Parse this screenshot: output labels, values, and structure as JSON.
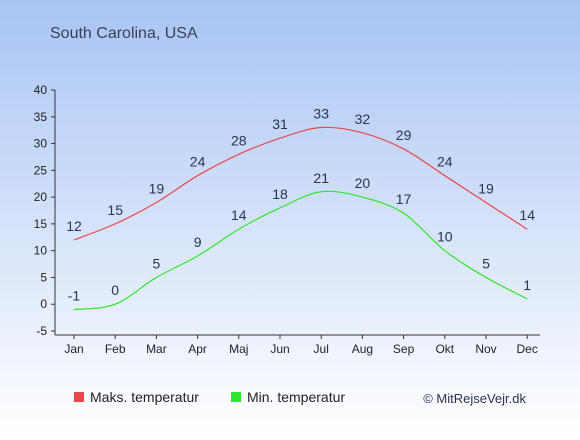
{
  "location": "South Carolina, USA",
  "copyright": "© MitRejseVejr.dk",
  "colors": {
    "max": "#e8474b",
    "min": "#2ee62e",
    "bg_top": "#a8c4f4",
    "bg_bottom": "#ffffff",
    "text": "#2a3350",
    "axis": "#333333"
  },
  "chart_data": {
    "type": "line",
    "title": "South Carolina, USA",
    "categories": [
      "Jan",
      "Feb",
      "Mar",
      "Apr",
      "Maj",
      "Jun",
      "Jul",
      "Aug",
      "Sep",
      "Okt",
      "Nov",
      "Dec"
    ],
    "ylim": [
      -5,
      40
    ],
    "yticks": [
      -5,
      0,
      5,
      10,
      15,
      20,
      25,
      30,
      35,
      40
    ],
    "grid": false,
    "legend_position": "bottom-left",
    "series": [
      {
        "name": "Maks. temperatur",
        "color": "#e8474b",
        "values": [
          12,
          15,
          19,
          24,
          28,
          31,
          33,
          32,
          29,
          24,
          19,
          14
        ]
      },
      {
        "name": "Min. temperatur",
        "color": "#2ee62e",
        "values": [
          -1,
          0,
          5,
          9,
          14,
          18,
          21,
          20,
          17,
          10,
          5,
          1
        ]
      }
    ]
  }
}
